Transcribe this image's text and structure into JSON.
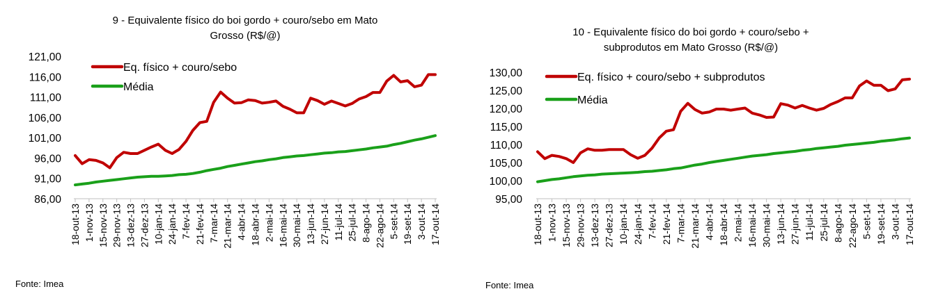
{
  "colors": {
    "series": "#c00000",
    "media": "#1aa01a",
    "axis": "#bfbfbf"
  },
  "chart_data": [
    {
      "type": "line",
      "title": [
        "9 - Equivalente físico do boi gordo + couro/sebo em Mato",
        "Grosso (R$/@)"
      ],
      "ylim": [
        86,
        121
      ],
      "yticks": [
        "86,00",
        "91,00",
        "96,00",
        "101,00",
        "106,00",
        "111,00",
        "116,00",
        "121,00"
      ],
      "ytick_values": [
        86,
        91,
        96,
        101,
        106,
        111,
        116,
        121
      ],
      "xtick_labels": [
        "18-out-13",
        "1-nov-13",
        "15-nov-13",
        "29-nov-13",
        "13-dez-13",
        "27-dez-13",
        "10-jan-14",
        "24-jan-14",
        "7-fev-14",
        "21-fev-14",
        "7-mar-14",
        "21-mar-14",
        "4-abr-14",
        "18-abr-14",
        "2-mai-14",
        "16-mai-14",
        "30-mai-14",
        "13-jun-14",
        "27-jun-14",
        "11-jul-14",
        "25-jul-14",
        "8-ago-14",
        "22-ago-14",
        "5-set-14",
        "19-set-14",
        "3-out-14",
        "17-out-14"
      ],
      "legend_placement": "top-left",
      "series": [
        {
          "name": "Eq. físico + couro/sebo",
          "values": [
            96.6,
            94.6,
            95.6,
            95.4,
            94.8,
            93.6,
            96.1,
            97.4,
            97.1,
            97.1,
            97.9,
            98.7,
            99.4,
            97.9,
            97.1,
            98.1,
            100.1,
            102.8,
            104.7,
            105.0,
            109.7,
            112.2,
            110.7,
            109.5,
            109.6,
            110.3,
            110.1,
            109.5,
            109.7,
            110.0,
            108.7,
            108.0,
            107.1,
            107.1,
            110.7,
            110.1,
            109.2,
            110.0,
            109.4,
            108.8,
            109.4,
            110.5,
            111.1,
            112.1,
            112.1,
            114.9,
            116.3,
            114.7,
            115.0,
            113.5,
            113.9,
            116.5,
            116.5
          ]
        },
        {
          "name": "Média",
          "values": [
            89.4,
            89.6,
            89.8,
            90.1,
            90.3,
            90.5,
            90.7,
            90.9,
            91.1,
            91.3,
            91.4,
            91.5,
            91.5,
            91.6,
            91.7,
            91.9,
            92.0,
            92.2,
            92.5,
            92.9,
            93.2,
            93.5,
            93.9,
            94.2,
            94.5,
            94.8,
            95.1,
            95.3,
            95.6,
            95.8,
            96.1,
            96.3,
            96.5,
            96.6,
            96.8,
            97.0,
            97.2,
            97.3,
            97.5,
            97.6,
            97.8,
            98.0,
            98.2,
            98.5,
            98.7,
            98.9,
            99.3,
            99.6,
            100.0,
            100.4,
            100.7,
            101.1,
            101.5
          ]
        }
      ],
      "source": "Fonte: Imea"
    },
    {
      "type": "line",
      "title": [
        "10 - Equivalente físico do boi gordo + couro/sebo +",
        "subprodutos em Mato Grosso (R$/@)"
      ],
      "ylim": [
        95,
        130
      ],
      "yticks": [
        "95,00",
        "100,00",
        "105,00",
        "110,00",
        "115,00",
        "120,00",
        "125,00",
        "130,00"
      ],
      "ytick_values": [
        95,
        100,
        105,
        110,
        115,
        120,
        125,
        130
      ],
      "xtick_labels": [
        "18-out-13",
        "1-nov-13",
        "15-nov-13",
        "29-nov-13",
        "13-dez-13",
        "27-dez-13",
        "10-jan-14",
        "24-jan-14",
        "7-fev-14",
        "21-fev-14",
        "7-mar-14",
        "21-mar-14",
        "4-abr-14",
        "18-abr-14",
        "2-mai-14",
        "16-mai-14",
        "30-mai-14",
        "13-jun-14",
        "27-jun-14",
        "11-jul-14",
        "25-jul-14",
        "8-ago-14",
        "22-ago-14",
        "5-set-14",
        "19-set-14",
        "3-out-14",
        "17-out-14"
      ],
      "legend_placement": "top-left",
      "series": [
        {
          "name": "Eq. físico + couro/sebo + subprodutos",
          "values": [
            108.0,
            106.1,
            107.0,
            106.7,
            106.1,
            105.0,
            107.7,
            108.8,
            108.4,
            108.4,
            108.6,
            108.6,
            108.6,
            107.2,
            106.2,
            107.0,
            109.0,
            111.8,
            113.7,
            114.1,
            119.2,
            121.4,
            119.7,
            118.7,
            119.0,
            119.8,
            119.8,
            119.5,
            119.8,
            120.1,
            118.7,
            118.2,
            117.5,
            117.6,
            121.3,
            120.9,
            120.1,
            120.8,
            120.1,
            119.5,
            120.0,
            121.1,
            121.9,
            122.9,
            122.9,
            126.2,
            127.6,
            126.4,
            126.4,
            124.9,
            125.4,
            127.9,
            128.1
          ]
        },
        {
          "name": "Média",
          "values": [
            99.7,
            100.0,
            100.3,
            100.5,
            100.8,
            101.1,
            101.3,
            101.5,
            101.6,
            101.8,
            101.9,
            102.0,
            102.1,
            102.2,
            102.3,
            102.5,
            102.6,
            102.8,
            103.0,
            103.3,
            103.5,
            103.9,
            104.3,
            104.6,
            105.0,
            105.3,
            105.6,
            105.9,
            106.2,
            106.5,
            106.8,
            107.0,
            107.2,
            107.5,
            107.7,
            107.9,
            108.1,
            108.4,
            108.6,
            108.9,
            109.1,
            109.3,
            109.5,
            109.8,
            110.0,
            110.2,
            110.4,
            110.6,
            110.9,
            111.1,
            111.3,
            111.6,
            111.8
          ]
        }
      ],
      "source": "Fonte: Imea"
    }
  ]
}
